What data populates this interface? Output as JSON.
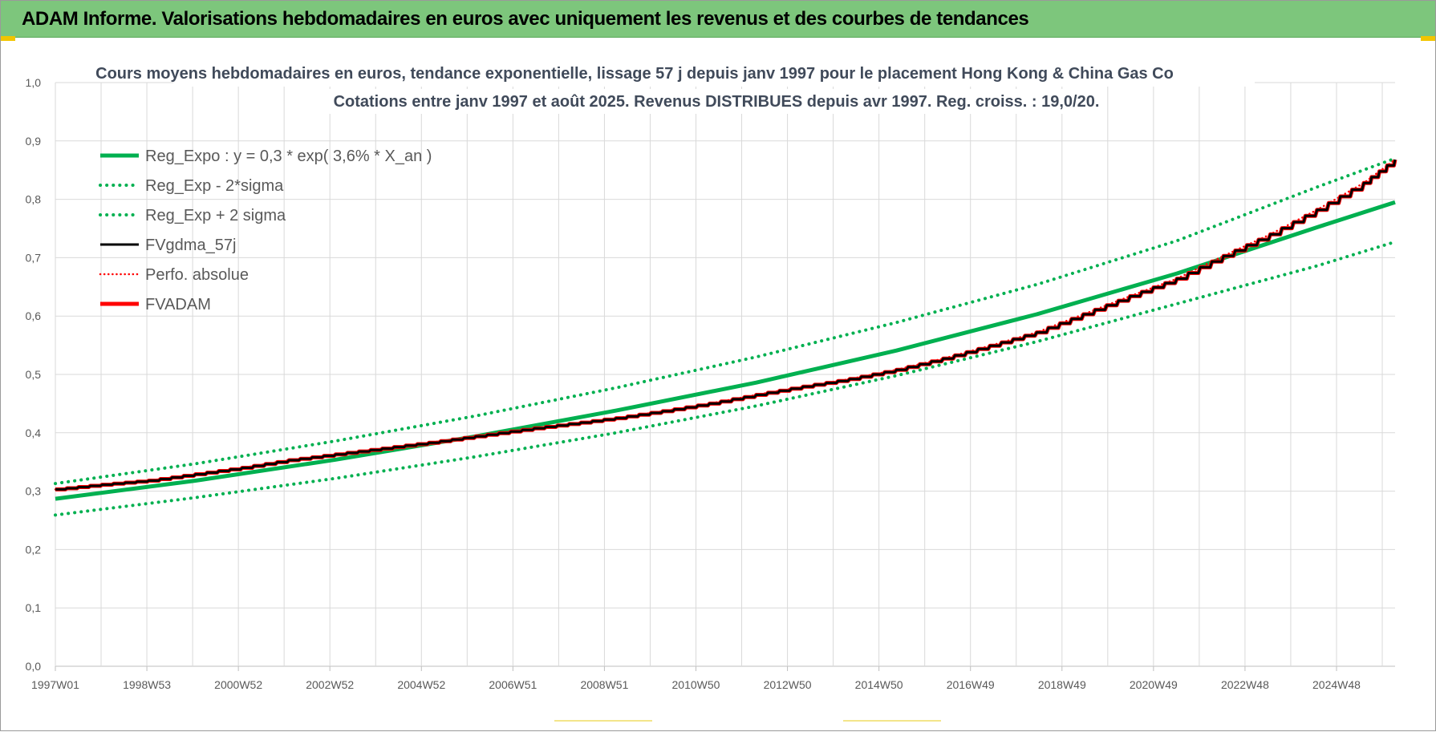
{
  "banner": {
    "title": "ADAM Informe. Valorisations hebdomadaires en euros avec uniquement les revenus et des courbes de tendances"
  },
  "chart_data": {
    "type": "line",
    "title": "Cours moyens hebdomadaires en euros, tendance exponentielle, lissage 57 j depuis janv 1997  pour le placement Hong Kong & China Gas Co",
    "subtitle": "Cotations entre janv 1997 et août 2025.  Revenus DISTRIBUES depuis avr 1997.  Reg. croiss. : 19,0/20.",
    "xlabel": "",
    "ylabel": "",
    "ylim": [
      0,
      1
    ],
    "y_ticks": [
      "0,0",
      "0,1",
      "0,2",
      "0,3",
      "0,4",
      "0,5",
      "0,6",
      "0,7",
      "0,8",
      "0,9",
      "1,0"
    ],
    "x_ticks": [
      "1997W01",
      "1998W53",
      "2000W52",
      "2002W52",
      "2004W52",
      "2006W51",
      "2008W51",
      "2010W50",
      "2012W50",
      "2014W50",
      "2016W49",
      "2018W49",
      "2020W49",
      "2022W48",
      "2024W48"
    ],
    "xlim": [
      1997.0,
      2025.67
    ],
    "grid": true,
    "legend_placement": "top-left",
    "colors": {
      "green": "#00b050",
      "red": "#ff0000",
      "black": "#000000",
      "grid": "#d9d9d9"
    },
    "series": [
      {
        "name": "Reg_Expo : y = 0,3 * exp( 3,6% *  X_an )",
        "style": "solid-green",
        "x": [
          1997,
          2000,
          2003,
          2006,
          2009,
          2012,
          2015,
          2018,
          2021,
          2024,
          2025.67
        ],
        "y": [
          0.287,
          0.318,
          0.354,
          0.394,
          0.438,
          0.486,
          0.541,
          0.603,
          0.673,
          0.752,
          0.795
        ]
      },
      {
        "name": "Reg_Exp - 2*sigma",
        "style": "dotted-green",
        "x": [
          1997,
          2000,
          2003,
          2006,
          2009,
          2012,
          2015,
          2018,
          2021,
          2024,
          2025.67
        ],
        "y": [
          0.259,
          0.289,
          0.322,
          0.359,
          0.4,
          0.446,
          0.498,
          0.556,
          0.621,
          0.686,
          0.727
        ]
      },
      {
        "name": "Reg_Exp + 2 sigma",
        "style": "dotted-green",
        "x": [
          1997,
          2000,
          2003,
          2006,
          2009,
          2012,
          2015,
          2018,
          2021,
          2024,
          2025.67
        ],
        "y": [
          0.313,
          0.347,
          0.386,
          0.429,
          0.477,
          0.53,
          0.589,
          0.654,
          0.729,
          0.821,
          0.87
        ]
      },
      {
        "name": "FVgdma_57j",
        "style": "solid-black",
        "x": [
          1997.0,
          1998.0,
          1999.0,
          2000.0,
          2001.0,
          2002.0,
          2003.0,
          2004.0,
          2005.0,
          2006.0,
          2007.0,
          2008.0,
          2009.0,
          2010.0,
          2011.0,
          2012.0,
          2013.0,
          2014.0,
          2015.0,
          2016.0,
          2017.0,
          2018.0,
          2019.0,
          2020.0,
          2021.0,
          2022.0,
          2023.0,
          2024.0,
          2025.0,
          2025.67
        ],
        "y": [
          0.303,
          0.311,
          0.318,
          0.329,
          0.34,
          0.353,
          0.363,
          0.373,
          0.383,
          0.394,
          0.405,
          0.415,
          0.425,
          0.437,
          0.45,
          0.465,
          0.479,
          0.492,
          0.508,
          0.527,
          0.549,
          0.572,
          0.603,
          0.634,
          0.664,
          0.703,
          0.74,
          0.782,
          0.828,
          0.868
        ]
      },
      {
        "name": "Perfo. absolue",
        "style": "dotted-red",
        "x": [
          1997.0,
          1998.0,
          1999.0,
          2000.0,
          2001.0,
          2002.0,
          2003.0,
          2004.0,
          2005.0,
          2006.0,
          2007.0,
          2008.0,
          2009.0,
          2010.0,
          2011.0,
          2012.0,
          2013.0,
          2014.0,
          2015.0,
          2016.0,
          2017.0,
          2018.0,
          2019.0,
          2020.0,
          2021.0,
          2022.0,
          2023.0,
          2024.0,
          2025.0,
          2025.67
        ],
        "y": [
          0.303,
          0.311,
          0.318,
          0.329,
          0.34,
          0.353,
          0.363,
          0.373,
          0.383,
          0.394,
          0.405,
          0.415,
          0.425,
          0.437,
          0.45,
          0.465,
          0.479,
          0.492,
          0.508,
          0.527,
          0.549,
          0.572,
          0.603,
          0.634,
          0.664,
          0.703,
          0.74,
          0.782,
          0.828,
          0.868
        ]
      },
      {
        "name": "FVADAM",
        "style": "solid-red",
        "x": [
          1997.0,
          1998.0,
          1999.0,
          2000.0,
          2001.0,
          2002.0,
          2003.0,
          2004.0,
          2005.0,
          2006.0,
          2007.0,
          2008.0,
          2009.0,
          2010.0,
          2011.0,
          2012.0,
          2013.0,
          2014.0,
          2015.0,
          2016.0,
          2017.0,
          2018.0,
          2019.0,
          2020.0,
          2021.0,
          2022.0,
          2023.0,
          2024.0,
          2025.0,
          2025.67
        ],
        "y": [
          0.303,
          0.311,
          0.318,
          0.329,
          0.34,
          0.353,
          0.363,
          0.373,
          0.383,
          0.394,
          0.405,
          0.415,
          0.425,
          0.437,
          0.45,
          0.465,
          0.479,
          0.492,
          0.508,
          0.527,
          0.549,
          0.572,
          0.603,
          0.634,
          0.664,
          0.703,
          0.74,
          0.782,
          0.828,
          0.868
        ]
      }
    ]
  }
}
